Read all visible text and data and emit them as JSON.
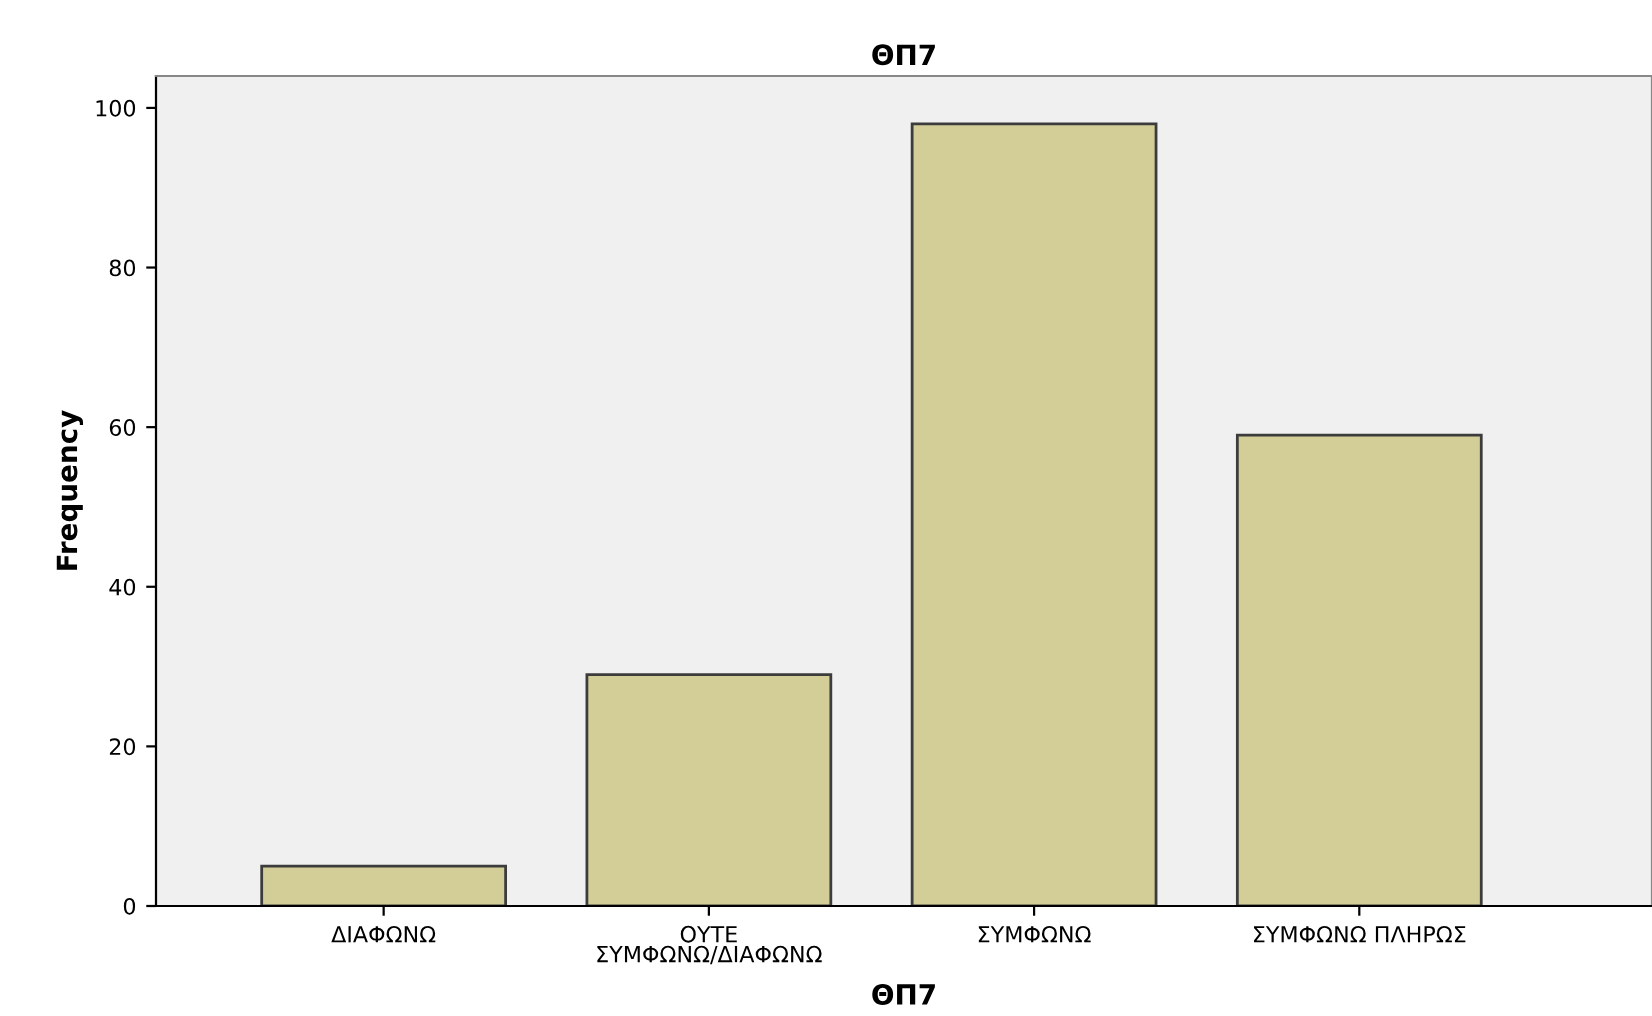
{
  "chart_data": {
    "type": "bar",
    "title": "ΘΠ7",
    "xlabel": "ΘΠ7",
    "ylabel": "Frequency",
    "categories": [
      "ΔΙΑΦΩΝΩ",
      "ΟΥΤΕ\nΣΥΜΦΩΝΩ/ΔΙΑΦΩΝΩ",
      "ΣΥΜΦΩΝΩ",
      "ΣΥΜΦΩΝΩ ΠΛΗΡΩΣ"
    ],
    "values": [
      5,
      29,
      98,
      59
    ],
    "color": "#d3ce97",
    "ylim": [
      0,
      104
    ],
    "yticks": [
      0,
      20,
      40,
      60,
      80,
      100
    ],
    "grid": false
  }
}
